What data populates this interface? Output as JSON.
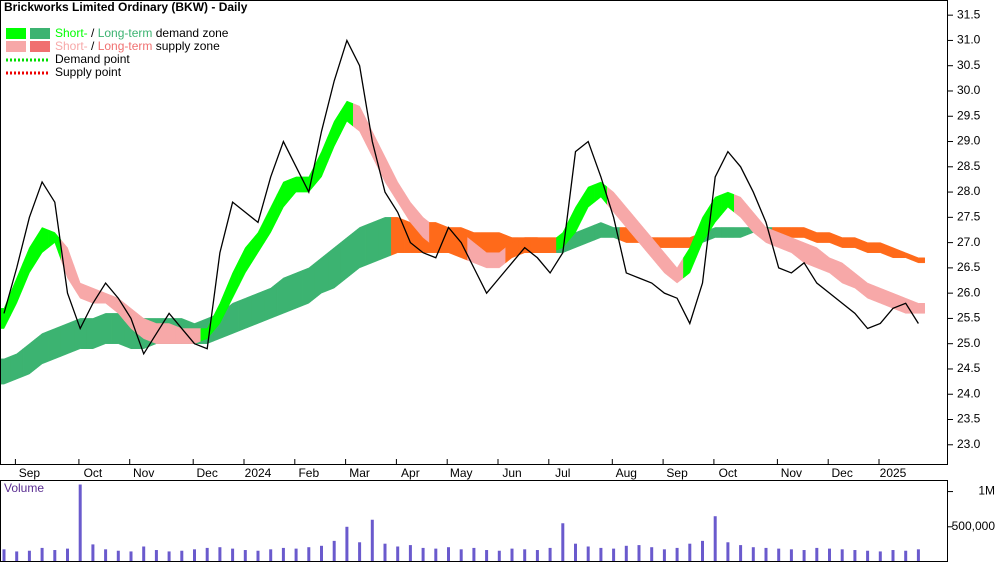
{
  "chart_data": [
    {
      "type": "line",
      "title": "Brickworks Limited Ordinary (BKW) - Daily",
      "legend": [
        {
          "parts": [
            "Short-",
            " / ",
            "Long-term",
            " demand zone"
          ],
          "colors": [
            "#00ff00",
            "#3cb371"
          ]
        },
        {
          "parts": [
            "Short-",
            " / ",
            "Long-term",
            " supply zone"
          ],
          "colors": [
            "#f7a8a8",
            "#f07070"
          ]
        },
        {
          "parts": [
            "Demand point"
          ],
          "colors": [
            "#00dd00"
          ]
        },
        {
          "parts": [
            "Supply point"
          ],
          "colors": [
            "#ee0000"
          ]
        }
      ],
      "categories": [
        null,
        null,
        "Sep",
        null,
        null,
        null,
        null,
        "Oct",
        null,
        null,
        null,
        "Nov",
        null,
        null,
        null,
        null,
        "Dec",
        null,
        null,
        null,
        "2024",
        null,
        null,
        null,
        "Feb",
        null,
        null,
        null,
        "Mar",
        null,
        null,
        null,
        "Apr",
        null,
        null,
        null,
        "May",
        null,
        null,
        null,
        "Jun",
        null,
        null,
        null,
        "Jul",
        null,
        null,
        null,
        null,
        "Aug",
        null,
        null,
        null,
        "Sep",
        null,
        null,
        null,
        "Oct",
        null,
        null,
        null,
        null,
        "Nov",
        null,
        null,
        null,
        "Dec",
        null,
        null,
        null,
        "2025",
        null,
        null
      ],
      "series": [
        {
          "color": "#000000",
          "values": [
            25.6,
            26.5,
            27.5,
            28.2,
            27.8,
            26.0,
            25.3,
            25.8,
            26.2,
            25.9,
            25.5,
            24.8,
            25.2,
            25.6,
            25.3,
            25.0,
            24.9,
            26.8,
            27.8,
            27.6,
            27.4,
            28.3,
            29.0,
            28.5,
            28.0,
            29.2,
            30.2,
            31.0,
            30.5,
            29.0,
            28.0,
            27.6,
            27.0,
            26.8,
            26.7,
            27.3,
            27.0,
            26.5,
            26.0,
            26.3,
            26.6,
            26.9,
            26.7,
            26.4,
            26.8,
            28.8,
            29.0,
            28.3,
            27.5,
            26.4,
            26.3,
            26.2,
            26.0,
            25.9,
            25.4,
            26.2,
            28.3,
            28.8,
            28.5,
            28.0,
            27.4,
            26.5,
            26.4,
            26.6,
            26.2,
            26.0,
            25.8,
            25.6,
            25.3,
            25.4,
            25.7,
            25.8,
            25.4
          ]
        }
      ],
      "bands": [
        {
          "lower": [
            24.2,
            24.3,
            24.4,
            24.6,
            24.7,
            24.8,
            24.9,
            24.9,
            25.0,
            25.0,
            24.9,
            24.9,
            25.0,
            25.0,
            25.0,
            25.0,
            25.0,
            25.1,
            25.2,
            25.3,
            25.4,
            25.5,
            25.6,
            25.7,
            25.8,
            26.0,
            26.1,
            26.3,
            26.5,
            26.6,
            26.7,
            26.8,
            26.8,
            26.8,
            26.8,
            26.8,
            26.8,
            26.8,
            26.8,
            26.8,
            26.8,
            26.8,
            26.8,
            26.8,
            26.8,
            26.9,
            27.0,
            27.1,
            27.1,
            27.0,
            27.0,
            26.9,
            26.9,
            26.9,
            26.9,
            27.0,
            27.1,
            27.1,
            27.1,
            27.2,
            27.1,
            27.1,
            27.1,
            27.1,
            27.0,
            27.0,
            26.9,
            26.9,
            26.8,
            26.8,
            26.7,
            26.7,
            26.6
          ],
          "upper": [
            24.7,
            24.8,
            25.0,
            25.2,
            25.3,
            25.4,
            25.5,
            25.5,
            25.6,
            25.6,
            25.6,
            25.5,
            25.5,
            25.5,
            25.5,
            25.4,
            25.5,
            25.6,
            25.8,
            25.9,
            26.0,
            26.1,
            26.3,
            26.4,
            26.5,
            26.7,
            26.9,
            27.1,
            27.3,
            27.4,
            27.5,
            27.5,
            27.4,
            27.4,
            27.4,
            27.3,
            27.3,
            27.2,
            27.2,
            27.2,
            27.1,
            27.1,
            27.1,
            27.1,
            27.1,
            27.2,
            27.3,
            27.4,
            27.3,
            27.3,
            27.2,
            27.1,
            27.1,
            27.1,
            27.1,
            27.2,
            27.3,
            27.3,
            27.3,
            27.3,
            27.3,
            27.3,
            27.3,
            27.3,
            27.2,
            27.2,
            27.1,
            27.1,
            27.0,
            27.0,
            26.9,
            26.8,
            26.7
          ],
          "colors": [
            "#3cb371",
            "#3cb371",
            "#3cb371",
            "#3cb371",
            "#3cb371",
            "#3cb371",
            "#3cb371",
            "#3cb371",
            "#3cb371",
            "#3cb371",
            "#3cb371",
            "#3cb371",
            "#3cb371",
            "#3cb371",
            "#3cb371",
            "#3cb371",
            "#3cb371",
            "#3cb371",
            "#3cb371",
            "#3cb371",
            "#3cb371",
            "#3cb371",
            "#3cb371",
            "#3cb371",
            "#3cb371",
            "#3cb371",
            "#3cb371",
            "#3cb371",
            "#3cb371",
            "#3cb371",
            "#3cb371",
            "#ff6a1a",
            "#ff6a1a",
            "#ff6a1a",
            "#ff6a1a",
            "#ff6a1a",
            "#ff6a1a",
            "#ff6a1a",
            "#ff6a1a",
            "#ff6a1a",
            "#ff6a1a",
            "#ff6a1a",
            "#ff6a1a",
            "#ff6a1a",
            "#3cb371",
            "#3cb371",
            "#3cb371",
            "#3cb371",
            "#3cb371",
            "#ff6a1a",
            "#ff6a1a",
            "#ff6a1a",
            "#ff6a1a",
            "#ff6a1a",
            "#ff6a1a",
            "#3cb371",
            "#3cb371",
            "#3cb371",
            "#3cb371",
            "#3cb371",
            "#3cb371",
            "#ff6a1a",
            "#ff6a1a",
            "#ff6a1a",
            "#ff6a1a",
            "#ff6a1a",
            "#ff6a1a",
            "#ff6a1a",
            "#ff6a1a",
            "#ff6a1a",
            "#ff6a1a",
            "#ff6a1a",
            "#ff6a1a"
          ]
        },
        {
          "lower": [
            25.3,
            25.8,
            26.4,
            26.8,
            27.0,
            26.3,
            25.9,
            25.8,
            25.8,
            25.6,
            25.3,
            25.1,
            25.0,
            25.0,
            25.0,
            25.0,
            25.1,
            25.4,
            25.9,
            26.4,
            26.8,
            27.2,
            27.7,
            28.0,
            28.0,
            28.3,
            28.9,
            29.4,
            29.2,
            28.7,
            28.2,
            27.8,
            27.4,
            27.1,
            26.9,
            26.8,
            26.7,
            26.6,
            26.5,
            26.5,
            26.7,
            26.8,
            26.8,
            26.8,
            26.9,
            27.2,
            27.7,
            27.9,
            27.6,
            27.3,
            27.0,
            26.7,
            26.4,
            26.2,
            26.4,
            27.0,
            27.4,
            27.7,
            27.5,
            27.2,
            27.0,
            26.9,
            26.8,
            26.6,
            26.5,
            26.4,
            26.2,
            26.1,
            25.9,
            25.8,
            25.7,
            25.6,
            25.6
          ],
          "upper": [
            25.7,
            26.3,
            26.9,
            27.3,
            27.2,
            26.9,
            26.2,
            26.1,
            26.0,
            25.9,
            25.7,
            25.5,
            25.4,
            25.4,
            25.3,
            25.3,
            25.3,
            25.8,
            26.4,
            26.9,
            27.2,
            27.7,
            28.2,
            28.3,
            28.3,
            28.8,
            29.4,
            29.8,
            29.7,
            29.2,
            28.7,
            28.2,
            27.8,
            27.5,
            27.3,
            27.3,
            27.2,
            27.0,
            26.8,
            26.8,
            27.0,
            27.1,
            27.1,
            27.0,
            27.2,
            27.7,
            28.1,
            28.2,
            28.0,
            27.7,
            27.4,
            27.1,
            26.8,
            26.5,
            26.9,
            27.5,
            27.9,
            28.0,
            27.9,
            27.6,
            27.3,
            27.2,
            27.1,
            27.0,
            26.9,
            26.7,
            26.6,
            26.4,
            26.2,
            26.1,
            26.0,
            25.9,
            25.8
          ],
          "colors": [
            "#00ff00",
            "#00ff00",
            "#00ff00",
            "#00ff00",
            "#00ff00",
            "#f7a8a8",
            "#f7a8a8",
            "#f7a8a8",
            "#f7a8a8",
            "#f7a8a8",
            "#f7a8a8",
            "#f7a8a8",
            "#f7a8a8",
            "#f7a8a8",
            "#f7a8a8",
            "#f7a8a8",
            "#00ff00",
            "#00ff00",
            "#00ff00",
            "#00ff00",
            "#00ff00",
            "#00ff00",
            "#00ff00",
            "#00ff00",
            "#00ff00",
            "#00ff00",
            "#00ff00",
            "#00ff00",
            "#f7a8a8",
            "#f7a8a8",
            "#f7a8a8",
            "#f7a8a8",
            "#f7a8a8",
            "#f7a8a8",
            "#ff6a1a",
            "#ff6a1a",
            "#ff6a1a",
            "#f7a8a8",
            "#f7a8a8",
            "#f7a8a8",
            "#ff6a1a",
            "#ff6a1a",
            "#ff6a1a",
            "#ff6a1a",
            "#00ff00",
            "#00ff00",
            "#00ff00",
            "#00ff00",
            "#f7a8a8",
            "#f7a8a8",
            "#f7a8a8",
            "#f7a8a8",
            "#f7a8a8",
            "#f7a8a8",
            "#00ff00",
            "#00ff00",
            "#00ff00",
            "#00ff00",
            "#f7a8a8",
            "#f7a8a8",
            "#f7a8a8",
            "#f7a8a8",
            "#f7a8a8",
            "#f7a8a8",
            "#f7a8a8",
            "#f7a8a8",
            "#f7a8a8",
            "#f7a8a8",
            "#f7a8a8",
            "#f7a8a8",
            "#f7a8a8",
            "#f7a8a8",
            "#f7a8a8"
          ]
        }
      ],
      "ylim": [
        22.6,
        31.8
      ],
      "yticks": [
        {
          "value": 23,
          "label": "23.0"
        },
        {
          "value": 23.5,
          "label": "23.5"
        },
        {
          "value": 24,
          "label": "24.0"
        },
        {
          "value": 24.5,
          "label": "24.5"
        },
        {
          "value": 25,
          "label": "25.0"
        },
        {
          "value": 25.5,
          "label": "25.5"
        },
        {
          "value": 26,
          "label": "26.0"
        },
        {
          "value": 26.5,
          "label": "26.5"
        },
        {
          "value": 27,
          "label": "27.0"
        },
        {
          "value": 27.5,
          "label": "27.5"
        },
        {
          "value": 28,
          "label": "28.0"
        },
        {
          "value": 28.5,
          "label": "28.5"
        },
        {
          "value": 29,
          "label": "29.0"
        },
        {
          "value": 29.5,
          "label": "29.5"
        },
        {
          "value": 30,
          "label": "30.0"
        },
        {
          "value": 30.5,
          "label": "30.5"
        },
        {
          "value": 31,
          "label": "31.0"
        },
        {
          "value": 31.5,
          "label": "31.5"
        }
      ]
    },
    {
      "type": "bar",
      "title": "Volume",
      "color": "#6a5acd",
      "values": [
        180000,
        150000,
        160000,
        200000,
        170000,
        190000,
        1100000,
        250000,
        180000,
        160000,
        150000,
        220000,
        170000,
        150000,
        160000,
        180000,
        200000,
        210000,
        190000,
        170000,
        160000,
        180000,
        200000,
        190000,
        210000,
        230000,
        300000,
        500000,
        280000,
        600000,
        260000,
        220000,
        240000,
        200000,
        190000,
        210000,
        180000,
        200000,
        170000,
        160000,
        190000,
        180000,
        170000,
        200000,
        550000,
        260000,
        220000,
        200000,
        190000,
        230000,
        240000,
        210000,
        180000,
        200000,
        260000,
        300000,
        650000,
        280000,
        240000,
        210000,
        200000,
        190000,
        180000,
        170000,
        200000,
        190000,
        180000,
        170000,
        160000,
        150000,
        170000,
        160000,
        180000
      ],
      "ylim": [
        0,
        1150000
      ],
      "yticks": [
        {
          "value": 500000,
          "label": "500,000"
        },
        {
          "value": 1000000,
          "label": "1M"
        }
      ]
    }
  ]
}
